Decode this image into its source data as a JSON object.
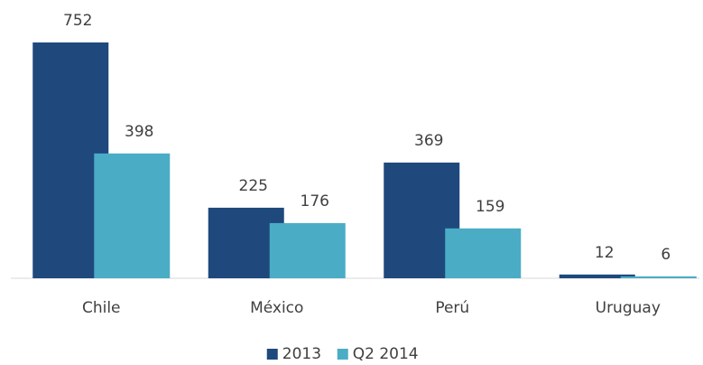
{
  "chart_data": {
    "type": "bar",
    "categories": [
      "Chile",
      "México",
      "Perú",
      "Uruguay"
    ],
    "series": [
      {
        "name": "2013",
        "color": "#1f497d",
        "values": [
          752,
          225,
          369,
          12
        ]
      },
      {
        "name": "Q2 2014",
        "color": "#4bacc6",
        "values": [
          398,
          176,
          159,
          6
        ]
      }
    ],
    "legend": "bottom"
  }
}
